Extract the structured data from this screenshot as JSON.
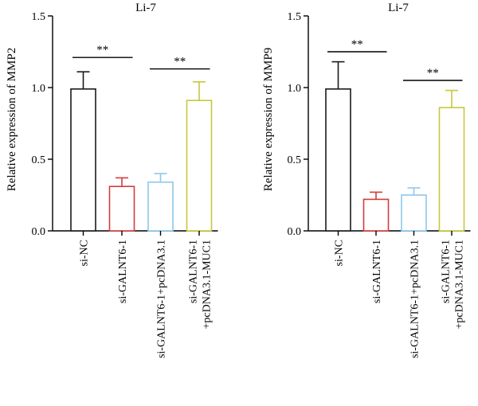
{
  "chart_data": [
    {
      "type": "bar",
      "title": "Li-7",
      "ylabel": "Relative expression of MMP2",
      "ylim": [
        0,
        1.5
      ],
      "yticks": [
        "0.0",
        "0.5",
        "1.0",
        "1.5"
      ],
      "categories": [
        "si-NC",
        "si-GALNT6-1",
        "si-GALNT6-1+pcDNA3.1",
        "si-GALNT6-1 +pcDNA3.1-MUC1"
      ],
      "category_lines": [
        [
          "si-NC"
        ],
        [
          "si-GALNT6-1"
        ],
        [
          "si-GALNT6-1+pcDNA3.1"
        ],
        [
          "si-GALNT6-1",
          "+pcDNA3.1-MUC1"
        ]
      ],
      "values": [
        0.99,
        0.31,
        0.34,
        0.91
      ],
      "errors": [
        0.12,
        0.06,
        0.06,
        0.13
      ],
      "colors": [
        "#1a1a1a",
        "#d43c3c",
        "#8ec8ea",
        "#c8c83a"
      ],
      "significance": [
        {
          "from": 0,
          "to": 1,
          "y": 1.21,
          "label": "**"
        },
        {
          "from": 2,
          "to": 3,
          "y": 1.13,
          "label": "**"
        }
      ]
    },
    {
      "type": "bar",
      "title": "Li-7",
      "ylabel": "Relative expression of MMP9",
      "ylim": [
        0,
        1.5
      ],
      "yticks": [
        "0.0",
        "0.5",
        "1.0",
        "1.5"
      ],
      "categories": [
        "si-NC",
        "si-GALNT6-1",
        "si-GALNT6-1+pcDNA3.1",
        "si-GALNT6-1 +pcDNA3.1-MUC1"
      ],
      "category_lines": [
        [
          "si-NC"
        ],
        [
          "si-GALNT6-1"
        ],
        [
          "si-GALNT6-1+pcDNA3.1"
        ],
        [
          "si-GALNT6-1",
          "+pcDNA3.1-MUC1"
        ]
      ],
      "values": [
        0.99,
        0.22,
        0.25,
        0.86
      ],
      "errors": [
        0.19,
        0.05,
        0.05,
        0.12
      ],
      "colors": [
        "#1a1a1a",
        "#d43c3c",
        "#8ec8ea",
        "#c8c83a"
      ],
      "significance": [
        {
          "from": 0,
          "to": 1,
          "y": 1.25,
          "label": "**"
        },
        {
          "from": 2,
          "to": 3,
          "y": 1.05,
          "label": "**"
        }
      ]
    }
  ]
}
